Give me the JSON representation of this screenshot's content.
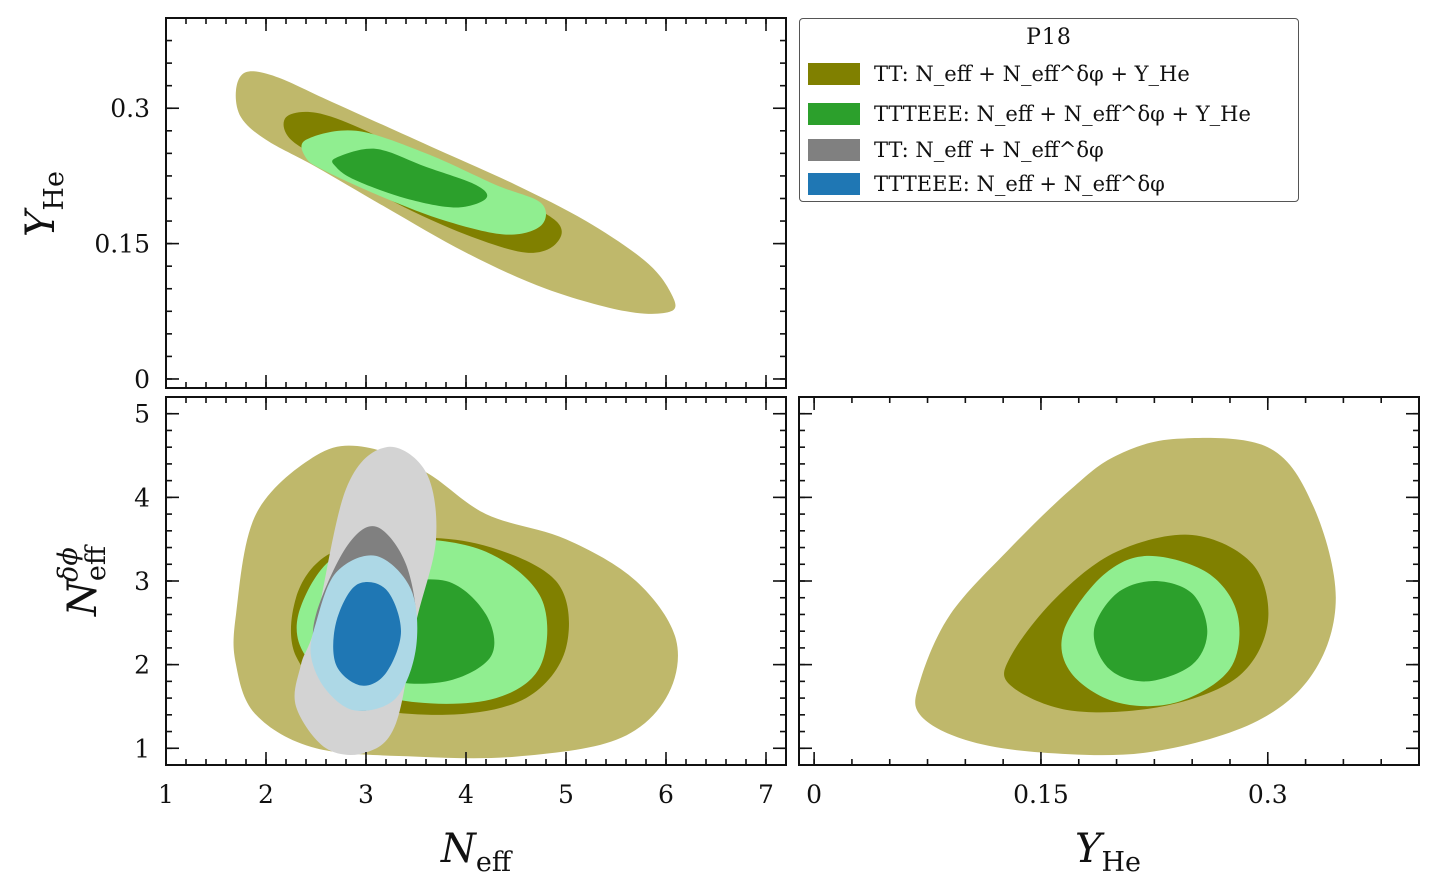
{
  "chart_data": {
    "type": "contour",
    "legend": {
      "title": "P18",
      "placement": "top-right",
      "entries": [
        {
          "label": "TT: N_eff + N_eff^δφ + Y_He",
          "color": "#808000",
          "color_68": "#808000",
          "color_95": "#bfb86b"
        },
        {
          "label": "TTTEEE: N_eff + N_eff^δφ + Y_He",
          "color": "#2ca02c",
          "color_68": "#2ca02c",
          "color_95": "#90ee90"
        },
        {
          "label": "TT: N_eff + N_eff^δφ",
          "color": "#808080",
          "color_68": "#808080",
          "color_95": "#d3d3d3"
        },
        {
          "label": "TTTEEE: N_eff + N_eff^δφ",
          "color": "#1f77b4",
          "color_68": "#1f77b4",
          "color_95": "#add8e6"
        }
      ]
    },
    "axes": {
      "N_eff": {
        "label": "N_eff",
        "range": [
          1.0,
          7.2
        ],
        "ticks": [
          1,
          2,
          3,
          4,
          5,
          6,
          7
        ],
        "tick_labels": [
          "1",
          "2",
          "3",
          "4",
          "5",
          "6",
          "7"
        ]
      },
      "Y_He": {
        "label": "Y_He",
        "range": [
          -0.01,
          0.4
        ],
        "ticks": [
          0,
          0.15,
          0.3
        ],
        "tick_labels": [
          "0",
          "0.15",
          "0.3"
        ]
      },
      "N_eff_dphi": {
        "label": "N_eff^δφ",
        "range": [
          0.8,
          5.2
        ],
        "ticks": [
          1,
          2,
          3,
          4,
          5
        ],
        "tick_labels": [
          "1",
          "2",
          "3",
          "4",
          "5"
        ]
      }
    },
    "panels": [
      {
        "id": "Neff-YHe",
        "x": "N_eff",
        "y": "Y_He",
        "contours": [
          {
            "series": 0,
            "level": "95",
            "points": [
              [
                1.7,
                0.32
              ],
              [
                1.8,
                0.34
              ],
              [
                2.1,
                0.335
              ],
              [
                2.6,
                0.31
              ],
              [
                3.2,
                0.28
              ],
              [
                3.8,
                0.25
              ],
              [
                4.5,
                0.215
              ],
              [
                5.2,
                0.175
              ],
              [
                5.8,
                0.13
              ],
              [
                6.05,
                0.095
              ],
              [
                6.05,
                0.075
              ],
              [
                5.6,
                0.075
              ],
              [
                4.8,
                0.1
              ],
              [
                4.0,
                0.14
              ],
              [
                3.2,
                0.19
              ],
              [
                2.5,
                0.235
              ],
              [
                2.0,
                0.265
              ],
              [
                1.75,
                0.29
              ]
            ]
          },
          {
            "series": 0,
            "level": "68",
            "points": [
              [
                2.2,
                0.29
              ],
              [
                2.5,
                0.295
              ],
              [
                3.0,
                0.275
              ],
              [
                3.6,
                0.24
              ],
              [
                4.3,
                0.21
              ],
              [
                4.9,
                0.175
              ],
              [
                4.9,
                0.15
              ],
              [
                4.6,
                0.14
              ],
              [
                4.0,
                0.16
              ],
              [
                3.3,
                0.195
              ],
              [
                2.7,
                0.235
              ],
              [
                2.25,
                0.265
              ]
            ]
          },
          {
            "series": 1,
            "level": "95",
            "points": [
              [
                2.4,
                0.265
              ],
              [
                2.9,
                0.275
              ],
              [
                3.6,
                0.25
              ],
              [
                4.3,
                0.215
              ],
              [
                4.75,
                0.195
              ],
              [
                4.75,
                0.17
              ],
              [
                4.4,
                0.16
              ],
              [
                3.8,
                0.175
              ],
              [
                3.2,
                0.2
              ],
              [
                2.6,
                0.23
              ],
              [
                2.4,
                0.245
              ]
            ]
          },
          {
            "series": 1,
            "level": "68",
            "points": [
              [
                2.7,
                0.245
              ],
              [
                3.1,
                0.255
              ],
              [
                3.6,
                0.235
              ],
              [
                4.1,
                0.215
              ],
              [
                4.2,
                0.2
              ],
              [
                3.9,
                0.19
              ],
              [
                3.4,
                0.2
              ],
              [
                2.9,
                0.22
              ],
              [
                2.7,
                0.235
              ]
            ]
          }
        ]
      },
      {
        "id": "Neff-Ndphi",
        "x": "N_eff",
        "y": "N_eff_dphi",
        "contours": [
          {
            "series": 0,
            "level": "95",
            "points": [
              [
                1.7,
                2.6
              ],
              [
                1.9,
                3.8
              ],
              [
                2.5,
                4.5
              ],
              [
                3.0,
                4.6
              ],
              [
                3.6,
                4.3
              ],
              [
                4.2,
                3.8
              ],
              [
                5.0,
                3.5
              ],
              [
                5.7,
                3.0
              ],
              [
                6.1,
                2.3
              ],
              [
                6.0,
                1.6
              ],
              [
                5.5,
                1.1
              ],
              [
                4.5,
                0.9
              ],
              [
                3.5,
                0.9
              ],
              [
                2.5,
                1.0
              ],
              [
                1.9,
                1.4
              ],
              [
                1.7,
                2.0
              ]
            ]
          },
          {
            "series": 0,
            "level": "68",
            "points": [
              [
                2.3,
                2.8
              ],
              [
                2.6,
                3.3
              ],
              [
                3.2,
                3.5
              ],
              [
                4.1,
                3.45
              ],
              [
                4.9,
                3.0
              ],
              [
                5.0,
                2.2
              ],
              [
                4.6,
                1.6
              ],
              [
                3.8,
                1.4
              ],
              [
                2.8,
                1.55
              ],
              [
                2.3,
                2.1
              ]
            ]
          },
          {
            "series": 1,
            "level": "95",
            "points": [
              [
                2.35,
                2.7
              ],
              [
                2.7,
                3.3
              ],
              [
                3.4,
                3.5
              ],
              [
                4.2,
                3.35
              ],
              [
                4.75,
                2.8
              ],
              [
                4.75,
                2.0
              ],
              [
                4.3,
                1.6
              ],
              [
                3.5,
                1.55
              ],
              [
                2.7,
                1.8
              ],
              [
                2.35,
                2.2
              ]
            ]
          },
          {
            "series": 1,
            "level": "68",
            "points": [
              [
                3.2,
                2.9
              ],
              [
                3.8,
                3.0
              ],
              [
                4.2,
                2.6
              ],
              [
                4.25,
                2.1
              ],
              [
                3.8,
                1.8
              ],
              [
                3.2,
                1.85
              ],
              [
                3.1,
                2.4
              ]
            ]
          },
          {
            "series": 2,
            "level": "95",
            "points": [
              [
                2.5,
                2.5
              ],
              [
                2.8,
                4.1
              ],
              [
                3.2,
                4.6
              ],
              [
                3.6,
                4.3
              ],
              [
                3.7,
                3.5
              ],
              [
                3.5,
                2.5
              ],
              [
                3.3,
                1.3
              ],
              [
                3.0,
                0.95
              ],
              [
                2.6,
                1.0
              ],
              [
                2.3,
                1.5
              ],
              [
                2.35,
                2.0
              ]
            ]
          },
          {
            "series": 2,
            "level": "68",
            "points": [
              [
                2.5,
                2.6
              ],
              [
                2.8,
                3.4
              ],
              [
                3.1,
                3.65
              ],
              [
                3.4,
                3.2
              ],
              [
                3.5,
                2.4
              ],
              [
                3.3,
                1.7
              ],
              [
                3.0,
                1.45
              ],
              [
                2.7,
                1.6
              ],
              [
                2.5,
                2.1
              ]
            ]
          },
          {
            "series": 3,
            "level": "95",
            "points": [
              [
                2.5,
                2.5
              ],
              [
                2.7,
                3.1
              ],
              [
                3.1,
                3.3
              ],
              [
                3.45,
                2.9
              ],
              [
                3.5,
                2.2
              ],
              [
                3.3,
                1.6
              ],
              [
                2.9,
                1.45
              ],
              [
                2.6,
                1.7
              ],
              [
                2.45,
                2.1
              ]
            ]
          },
          {
            "series": 3,
            "level": "68",
            "points": [
              [
                2.7,
                2.5
              ],
              [
                2.9,
                2.95
              ],
              [
                3.2,
                2.9
              ],
              [
                3.35,
                2.4
              ],
              [
                3.2,
                1.9
              ],
              [
                2.95,
                1.75
              ],
              [
                2.7,
                2.0
              ]
            ]
          }
        ]
      },
      {
        "id": "YHe-Ndphi",
        "x": "Y_He",
        "y": "N_eff_dphi",
        "contours": [
          {
            "series": 0,
            "level": "95",
            "points": [
              [
                0.07,
                1.8
              ],
              [
                0.09,
                2.6
              ],
              [
                0.13,
                3.4
              ],
              [
                0.17,
                4.1
              ],
              [
                0.2,
                4.5
              ],
              [
                0.24,
                4.7
              ],
              [
                0.3,
                4.6
              ],
              [
                0.33,
                3.9
              ],
              [
                0.345,
                2.8
              ],
              [
                0.33,
                1.9
              ],
              [
                0.29,
                1.3
              ],
              [
                0.22,
                0.95
              ],
              [
                0.15,
                0.95
              ],
              [
                0.1,
                1.1
              ],
              [
                0.07,
                1.4
              ]
            ]
          },
          {
            "series": 0,
            "level": "68",
            "points": [
              [
                0.13,
                2.1
              ],
              [
                0.16,
                2.8
              ],
              [
                0.2,
                3.35
              ],
              [
                0.25,
                3.55
              ],
              [
                0.29,
                3.2
              ],
              [
                0.3,
                2.5
              ],
              [
                0.28,
                1.85
              ],
              [
                0.23,
                1.5
              ],
              [
                0.17,
                1.45
              ],
              [
                0.13,
                1.75
              ]
            ]
          },
          {
            "series": 1,
            "level": "95",
            "points": [
              [
                0.165,
                2.4
              ],
              [
                0.19,
                3.05
              ],
              [
                0.22,
                3.3
              ],
              [
                0.26,
                3.1
              ],
              [
                0.28,
                2.6
              ],
              [
                0.275,
                1.95
              ],
              [
                0.24,
                1.55
              ],
              [
                0.2,
                1.55
              ],
              [
                0.17,
                1.9
              ]
            ]
          },
          {
            "series": 1,
            "level": "68",
            "points": [
              [
                0.185,
                2.4
              ],
              [
                0.2,
                2.85
              ],
              [
                0.225,
                3.0
              ],
              [
                0.25,
                2.85
              ],
              [
                0.26,
                2.4
              ],
              [
                0.25,
                2.0
              ],
              [
                0.22,
                1.8
              ],
              [
                0.195,
                1.95
              ]
            ]
          }
        ]
      }
    ]
  }
}
